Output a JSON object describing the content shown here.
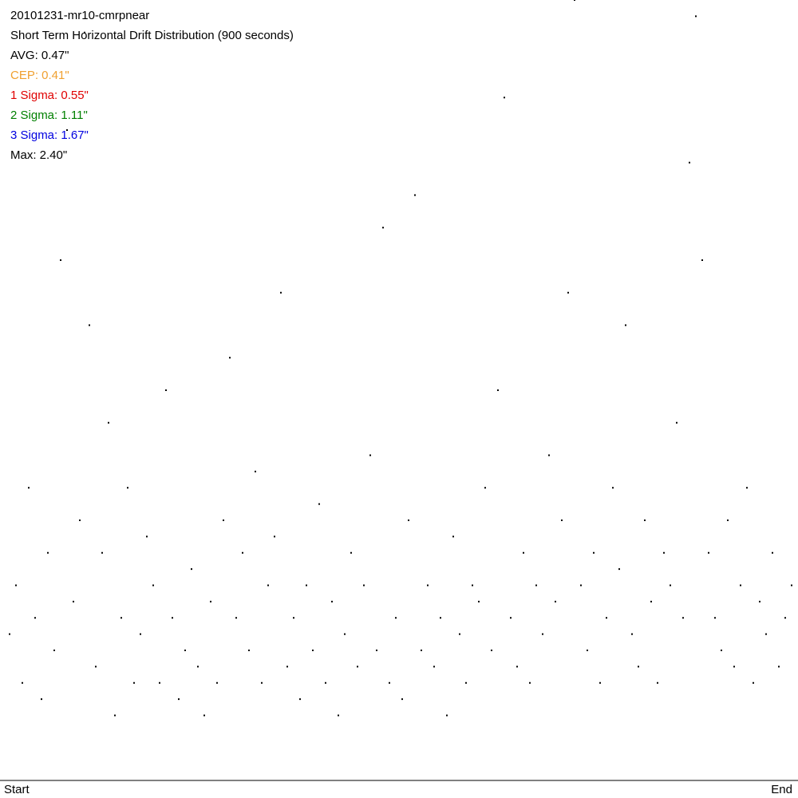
{
  "chart_data": {
    "type": "scatter",
    "title": "20101231-mr10-cmrpnear",
    "subtitle": "Short Term Horizontal Drift Distribution (900 seconds)",
    "stats": [
      {
        "label": "AVG: 0.47\"",
        "color": "#000000"
      },
      {
        "label": "CEP: 0.41\"",
        "color": "#f0a030"
      },
      {
        "label": "1 Sigma: 0.55\"",
        "color": "#e00000"
      },
      {
        "label": "2 Sigma: 1.11\"",
        "color": "#008000"
      },
      {
        "label": "3 Sigma: 1.67\"",
        "color": "#0000e0"
      },
      {
        "label": "Max: 2.40\"",
        "color": "#000000"
      }
    ],
    "x_start_label": "Start",
    "x_end_label": "End",
    "color": "#000000",
    "xlim": [
      0,
      1000
    ],
    "ylim": [
      0,
      2.4
    ],
    "x": [
      12,
      20,
      28,
      36,
      44,
      52,
      60,
      68,
      76,
      84,
      92,
      100,
      106,
      112,
      120,
      128,
      136,
      144,
      152,
      160,
      168,
      176,
      184,
      192,
      200,
      208,
      216,
      224,
      232,
      240,
      248,
      256,
      264,
      272,
      280,
      288,
      296,
      304,
      312,
      320,
      328,
      336,
      344,
      352,
      360,
      368,
      376,
      384,
      392,
      400,
      408,
      416,
      424,
      432,
      440,
      448,
      456,
      464,
      472,
      480,
      488,
      496,
      504,
      512,
      520,
      528,
      536,
      544,
      552,
      560,
      568,
      576,
      584,
      592,
      600,
      608,
      616,
      624,
      632,
      640,
      648,
      656,
      664,
      672,
      680,
      688,
      696,
      704,
      712,
      720,
      728,
      736,
      744,
      752,
      760,
      768,
      776,
      784,
      792,
      800,
      808,
      816,
      824,
      832,
      840,
      848,
      856,
      864,
      872,
      880,
      888,
      896,
      904,
      912,
      920,
      928,
      936,
      944,
      952,
      960,
      968,
      976,
      984,
      992
    ],
    "y": [
      0.45,
      0.6,
      0.3,
      0.9,
      0.5,
      0.25,
      0.7,
      0.4,
      1.6,
      2.0,
      0.55,
      0.8,
      2.3,
      1.4,
      0.35,
      0.7,
      1.1,
      0.2,
      0.5,
      0.9,
      0.3,
      0.45,
      0.75,
      0.6,
      0.3,
      1.2,
      0.5,
      0.25,
      0.4,
      0.65,
      0.35,
      0.2,
      0.55,
      0.3,
      0.8,
      1.3,
      0.5,
      0.7,
      0.4,
      0.95,
      0.3,
      0.6,
      0.75,
      1.5,
      0.35,
      0.5,
      0.25,
      0.6,
      0.4,
      0.85,
      0.3,
      0.55,
      0.2,
      0.45,
      0.7,
      0.35,
      0.6,
      1.0,
      0.4,
      1.7,
      0.3,
      0.5,
      0.25,
      0.8,
      1.8,
      0.4,
      0.6,
      0.35,
      0.5,
      0.2,
      0.75,
      0.45,
      0.3,
      0.6,
      0.55,
      0.9,
      0.4,
      1.2,
      2.1,
      0.5,
      0.35,
      0.7,
      0.3,
      0.6,
      0.45,
      1.0,
      0.55,
      0.8,
      1.5,
      2.4,
      0.6,
      0.4,
      0.7,
      0.3,
      0.5,
      0.9,
      0.65,
      1.4,
      0.45,
      0.35,
      0.8,
      0.55,
      0.3,
      0.7,
      0.6,
      1.1,
      0.5,
      1.9,
      2.35,
      1.6,
      0.7,
      0.5,
      0.4,
      0.8,
      0.35,
      0.6,
      0.9,
      0.3,
      0.55,
      0.45,
      0.7,
      0.35,
      0.5,
      0.6
    ]
  }
}
